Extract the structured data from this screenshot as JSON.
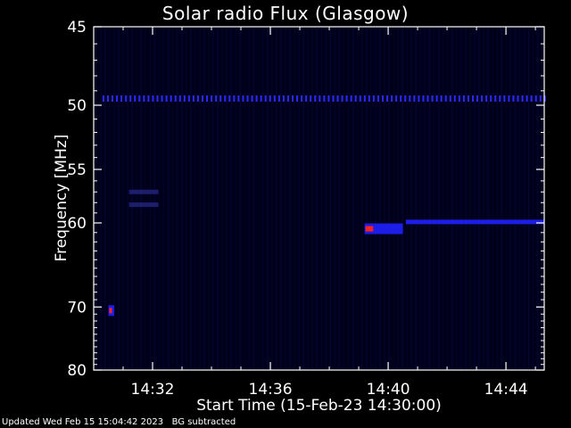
{
  "chart_data": {
    "type": "heatmap",
    "title": "Solar radio Flux (Glasgow)",
    "xlabel": "Start Time (15-Feb-23 14:30:00)",
    "ylabel": "Frequency [MHz]",
    "x_ticks": [
      "14:32",
      "14:36",
      "14:40",
      "14:44"
    ],
    "x_tick_minutes": [
      2,
      6,
      10,
      14
    ],
    "xlim_minutes": [
      0,
      15.3
    ],
    "y_ticks": [
      45,
      50,
      55,
      60,
      70,
      80
    ],
    "ylim": [
      45,
      80
    ],
    "y_scale": "reciprocal",
    "colors": {
      "background": "#000000",
      "axes": "#ffffff",
      "low": "#0a0a40",
      "mid": "#2020ff",
      "high": "#ff2020"
    },
    "features": [
      {
        "kind": "band",
        "freq_mhz": 49.5,
        "t_start": 0.3,
        "t_end": 15.3,
        "intensity": "low"
      },
      {
        "kind": "band",
        "freq_mhz": 59.9,
        "t_start": 10.6,
        "t_end": 15.3,
        "intensity": "mid"
      },
      {
        "kind": "burst",
        "freq_mhz": 60.6,
        "t_start": 9.2,
        "t_end": 10.5,
        "intensity": "high"
      },
      {
        "kind": "burst",
        "freq_mhz": 70.5,
        "t_start": 0.5,
        "t_end": 0.7,
        "intensity": "high"
      },
      {
        "kind": "band",
        "freq_mhz": 58.2,
        "t_start": 1.2,
        "t_end": 2.2,
        "intensity": "low"
      },
      {
        "kind": "band",
        "freq_mhz": 57.0,
        "t_start": 1.2,
        "t_end": 2.2,
        "intensity": "low"
      }
    ]
  },
  "footer": {
    "updated": "Updated Wed Feb 15 15:04:42 2023",
    "note": "BG subtracted"
  }
}
